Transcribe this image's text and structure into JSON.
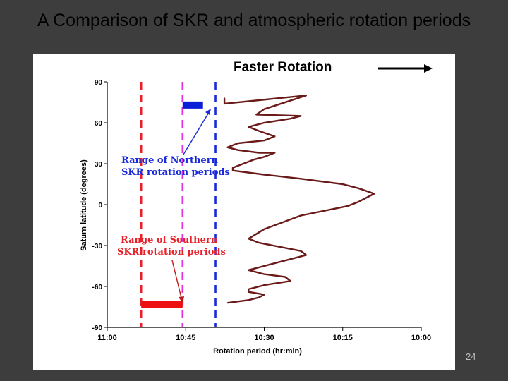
{
  "slide": {
    "title": "A Comparison of SKR and atmospheric rotation periods",
    "slide_number": "24",
    "background": "#3d3d3d"
  },
  "chart_data": {
    "type": "line",
    "xlabel": "Rotation period (hr:min)",
    "ylabel": "Saturn latitude (degrees)",
    "x_tick_labels": [
      "11:00",
      "10:45",
      "10:30",
      "10:15",
      "10:00"
    ],
    "x_ticks_minutes": [
      660,
      645,
      630,
      615,
      600
    ],
    "x_reversed": true,
    "xlim_minutes": [
      660,
      600
    ],
    "y_ticks": [
      90,
      60,
      30,
      0,
      -30,
      -60,
      -90
    ],
    "ylim": [
      -90,
      90
    ],
    "grid": false,
    "colors": {
      "profile": "#6b1a1a",
      "south_line": "#e8202a",
      "north_line": "#e030e0",
      "mid_line": "#1a2ad8",
      "south_bar": "#ee1111",
      "north_bar": "#0a1ed8",
      "north_label": "#1a2ad8",
      "south_label": "#e8202a",
      "arrow": "#000000"
    },
    "series": [
      {
        "x": [
          637.6,
          637.6,
          622,
          630,
          631.5,
          623,
          625,
          630,
          633,
          631,
          628,
          630,
          635,
          637,
          635,
          631,
          628,
          630,
          632,
          636,
          636,
          630,
          623,
          615,
          612,
          609,
          612,
          614,
          623,
          630,
          633,
          631,
          623,
          622,
          625,
          630,
          633,
          630,
          626,
          625,
          630,
          633,
          633,
          630,
          631,
          633,
          637
        ],
        "y": [
          78,
          74,
          80,
          70,
          66,
          65,
          63,
          60,
          57,
          54,
          50,
          47,
          45,
          42,
          40,
          38,
          38,
          35,
          33,
          27,
          25,
          22,
          19,
          15,
          12,
          8,
          2,
          -1,
          -8,
          -18,
          -25,
          -28,
          -34,
          -37,
          -40,
          -45,
          -48,
          -51,
          -53,
          -56,
          -59,
          -62,
          -64,
          -66,
          -68,
          -70,
          -72
        ]
      }
    ],
    "reference_lines": [
      {
        "name": "south",
        "x": 653.5
      },
      {
        "name": "north",
        "x": 645.6
      },
      {
        "name": "mid",
        "x": 639.3
      }
    ],
    "ranges": [
      {
        "name": "north",
        "x": [
          645.6,
          641.7
        ],
        "y": 73
      },
      {
        "name": "south",
        "x": [
          653.5,
          645.6
        ],
        "y": -73
      }
    ],
    "annotations": {
      "north_label_line1": "Range of Northern",
      "north_label_line2": "SKR rotation periods",
      "south_label_line1": "Range of Southern",
      "south_label_line2": "SKR rotation periods",
      "faster": "Faster Rotation"
    }
  }
}
